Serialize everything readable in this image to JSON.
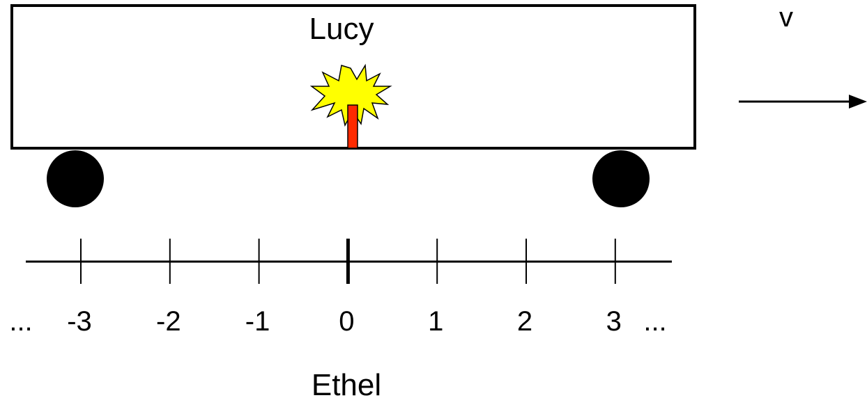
{
  "train": {
    "label": "Lucy"
  },
  "velocity": {
    "label": "v"
  },
  "ruler": {
    "left_ellipsis": "...",
    "ticks": [
      "-3",
      "-2",
      "-1",
      "0",
      "1",
      "2",
      "3"
    ],
    "right_ellipsis": "..."
  },
  "observer": {
    "label": "Ethel"
  }
}
